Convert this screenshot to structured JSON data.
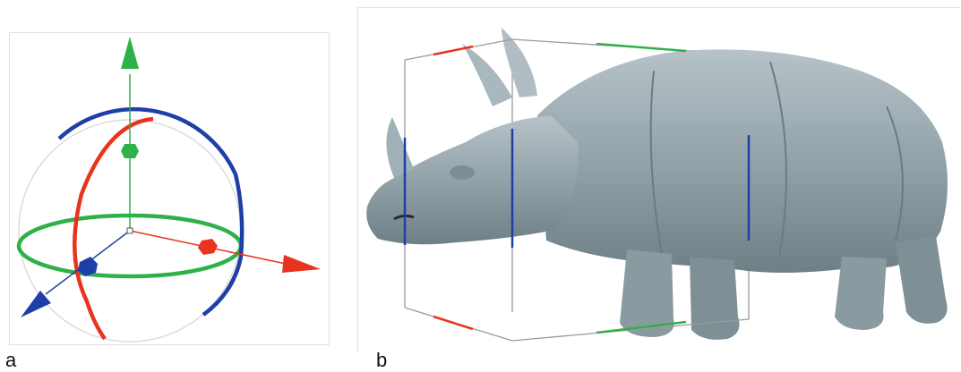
{
  "panels": [
    {
      "label": "a"
    },
    {
      "label": "b"
    }
  ],
  "colors": {
    "x_axis": "#e8341e",
    "y_axis": "#2fb14a",
    "z_axis": "#1f3fa8",
    "sphere_outline": "#d9d9d9",
    "rhino_fill": "#8f9fa6",
    "box_edge": "#9a9a9a"
  },
  "icons": [
    "gizmo-transform-icon",
    "rhino-model-icon"
  ]
}
